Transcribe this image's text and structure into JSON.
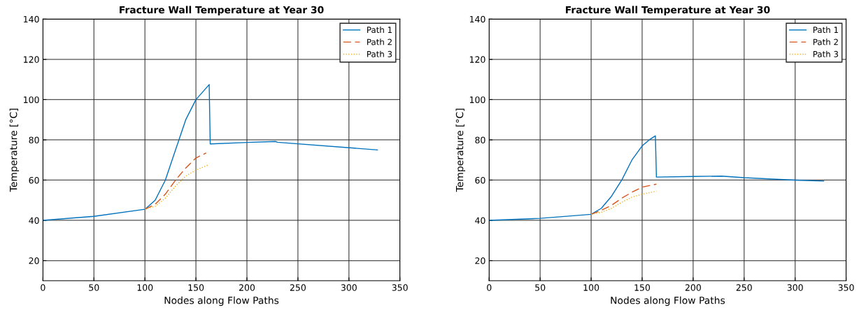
{
  "chart_data": [
    {
      "type": "line",
      "title": "Fracture Wall Temperature at Year 30",
      "xlabel": "Nodes along Flow Paths",
      "ylabel": "Temperature [°C]",
      "xlim": [
        0,
        350
      ],
      "xticks": [
        0,
        50,
        100,
        150,
        200,
        250,
        300,
        350
      ],
      "ylim": [
        10,
        140
      ],
      "yticks": [
        20,
        40,
        60,
        80,
        100,
        120,
        140
      ],
      "grid": true,
      "legend": "top right",
      "series": [
        {
          "name": "Path 1",
          "color": "#0072bd",
          "line_style": "solid",
          "x": [
            0,
            50,
            100,
            110,
            120,
            130,
            140,
            150,
            157,
            163,
            164,
            200,
            228,
            230,
            328
          ],
          "values": [
            40,
            42,
            45.5,
            50,
            60,
            75,
            90,
            100,
            104,
            107.5,
            78,
            78.7,
            79.2,
            78.8,
            75
          ]
        },
        {
          "name": "Path 2",
          "color": "#d95319",
          "line_style": "dashed",
          "x": [
            100,
            110,
            120,
            130,
            140,
            150,
            160
          ],
          "values": [
            45.5,
            48,
            53,
            60,
            66,
            71,
            73.5
          ]
        },
        {
          "name": "Path 3",
          "color": "#edb120",
          "line_style": "dotted",
          "x": [
            100,
            110,
            120,
            130,
            140,
            150,
            162
          ],
          "values": [
            45.5,
            47,
            51,
            57,
            62,
            65,
            67.5
          ]
        }
      ]
    },
    {
      "type": "line",
      "title": "Fracture Wall Temperature at Year 30",
      "xlabel": "Nodes along Flow Paths",
      "ylabel": "Temperature [°C]",
      "xlim": [
        0,
        350
      ],
      "xticks": [
        0,
        50,
        100,
        150,
        200,
        250,
        300,
        350
      ],
      "ylim": [
        10,
        140
      ],
      "yticks": [
        20,
        40,
        60,
        80,
        100,
        120,
        140
      ],
      "grid": true,
      "legend": "top right",
      "series": [
        {
          "name": "Path 1",
          "color": "#0072bd",
          "line_style": "solid",
          "x": [
            0,
            50,
            100,
            110,
            120,
            130,
            140,
            150,
            157,
            163,
            164,
            200,
            228,
            250,
            300,
            328
          ],
          "values": [
            40,
            41,
            43,
            46,
            52,
            60,
            70,
            77,
            80,
            82,
            61.5,
            61.8,
            62,
            61.2,
            60,
            59.5
          ]
        },
        {
          "name": "Path 2",
          "color": "#d95319",
          "line_style": "dashed",
          "x": [
            100,
            110,
            120,
            130,
            140,
            150,
            164
          ],
          "values": [
            43,
            45,
            47.5,
            51,
            54,
            56.5,
            58
          ]
        },
        {
          "name": "Path 3",
          "color": "#edb120",
          "line_style": "dotted",
          "x": [
            100,
            110,
            120,
            130,
            140,
            150,
            164
          ],
          "values": [
            43,
            44,
            46,
            49,
            51.5,
            53,
            54.5
          ]
        }
      ]
    }
  ]
}
